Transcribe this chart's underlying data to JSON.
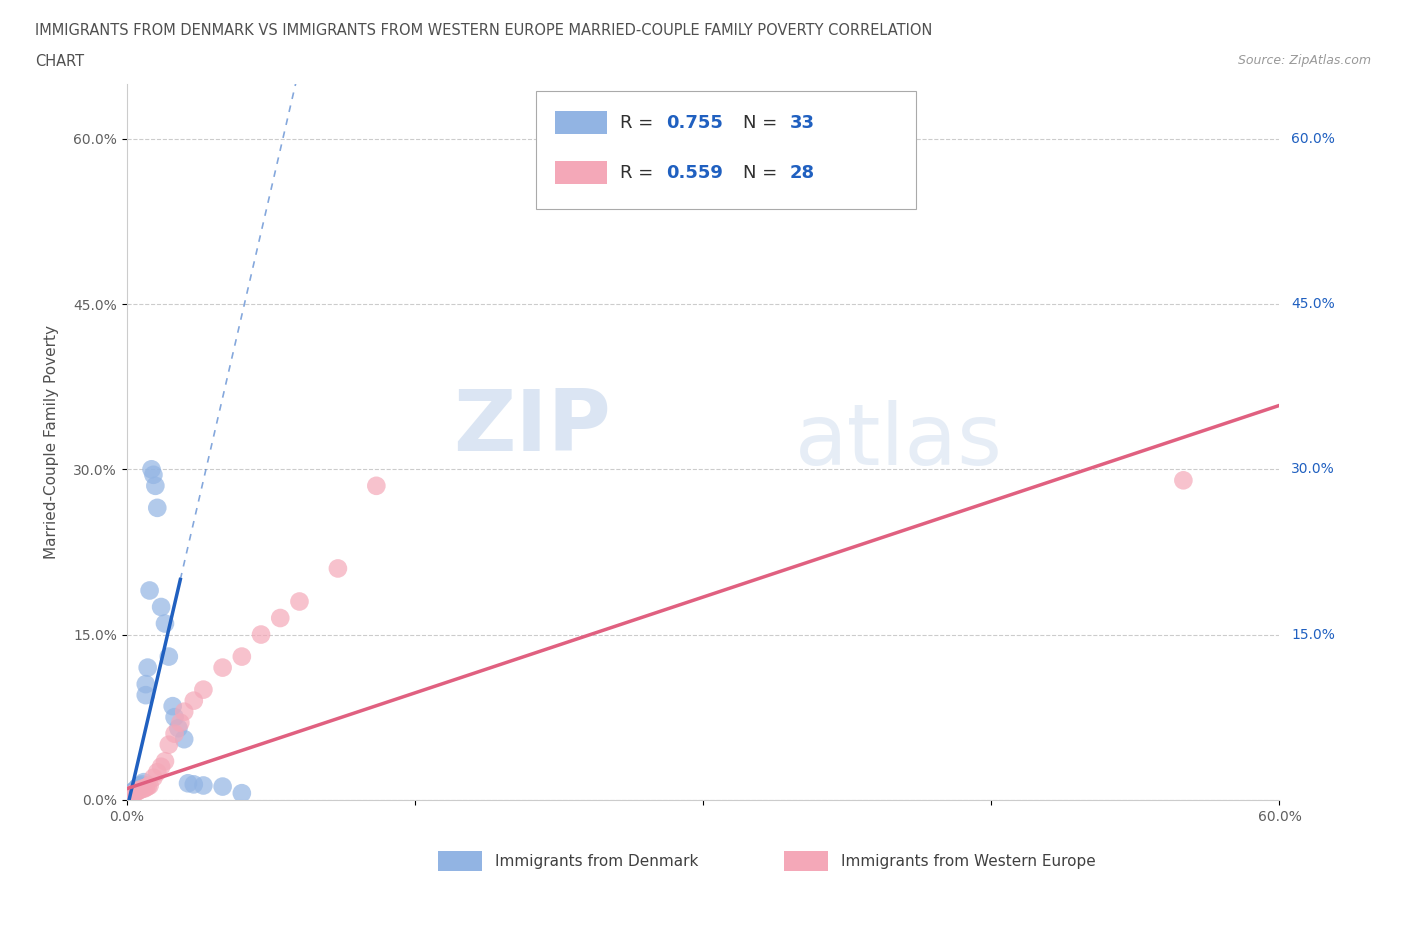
{
  "title_line1": "IMMIGRANTS FROM DENMARK VS IMMIGRANTS FROM WESTERN EUROPE MARRIED-COUPLE FAMILY POVERTY CORRELATION",
  "title_line2": "CHART",
  "source": "Source: ZipAtlas.com",
  "ylabel": "Married-Couple Family Poverty",
  "xlabel_denmark": "Immigrants from Denmark",
  "xlabel_western": "Immigrants from Western Europe",
  "xlim": [
    0,
    0.6
  ],
  "ylim": [
    0,
    0.65
  ],
  "xticks": [
    0.0,
    0.15,
    0.3,
    0.45,
    0.6
  ],
  "yticks": [
    0.0,
    0.15,
    0.3,
    0.45,
    0.6
  ],
  "xtick_labels_bottom_left": "0.0%",
  "xtick_labels_bottom_right": "60.0%",
  "ytick_labels_left": [
    "0.0%",
    "15.0%",
    "30.0%",
    "45.0%",
    "60.0%"
  ],
  "ytick_labels_right": [
    "15.0%",
    "30.0%",
    "45.0%",
    "60.0%"
  ],
  "yticks_right": [
    0.15,
    0.3,
    0.45,
    0.6
  ],
  "denmark_R": 0.755,
  "denmark_N": 33,
  "western_R": 0.559,
  "western_N": 28,
  "denmark_color": "#92b4e3",
  "western_color": "#f4a8b8",
  "denmark_line_color": "#2060c0",
  "western_line_color": "#e06080",
  "watermark_zip": "ZIP",
  "watermark_atlas": "atlas",
  "denmark_x": [
    0.002,
    0.003,
    0.003,
    0.004,
    0.004,
    0.005,
    0.005,
    0.006,
    0.006,
    0.007,
    0.007,
    0.008,
    0.009,
    0.01,
    0.01,
    0.011,
    0.012,
    0.013,
    0.014,
    0.015,
    0.016,
    0.018,
    0.02,
    0.022,
    0.024,
    0.025,
    0.027,
    0.03,
    0.032,
    0.035,
    0.04,
    0.05,
    0.06
  ],
  "denmark_y": [
    0.005,
    0.006,
    0.007,
    0.008,
    0.008,
    0.009,
    0.01,
    0.011,
    0.012,
    0.012,
    0.013,
    0.014,
    0.016,
    0.095,
    0.105,
    0.12,
    0.19,
    0.3,
    0.295,
    0.285,
    0.265,
    0.175,
    0.16,
    0.13,
    0.085,
    0.075,
    0.065,
    0.055,
    0.015,
    0.014,
    0.013,
    0.012,
    0.006
  ],
  "western_x": [
    0.003,
    0.004,
    0.005,
    0.006,
    0.007,
    0.008,
    0.009,
    0.01,
    0.011,
    0.012,
    0.014,
    0.016,
    0.018,
    0.02,
    0.022,
    0.025,
    0.028,
    0.03,
    0.035,
    0.04,
    0.05,
    0.06,
    0.07,
    0.08,
    0.09,
    0.11,
    0.13,
    0.55
  ],
  "western_y": [
    0.005,
    0.006,
    0.007,
    0.008,
    0.009,
    0.01,
    0.01,
    0.011,
    0.012,
    0.013,
    0.02,
    0.025,
    0.03,
    0.035,
    0.05,
    0.06,
    0.07,
    0.08,
    0.09,
    0.1,
    0.12,
    0.13,
    0.15,
    0.165,
    0.18,
    0.21,
    0.285,
    0.29
  ],
  "denmark_reg_m": 7.5,
  "denmark_reg_b": -0.01,
  "western_reg_m": 0.58,
  "western_reg_b": 0.01
}
